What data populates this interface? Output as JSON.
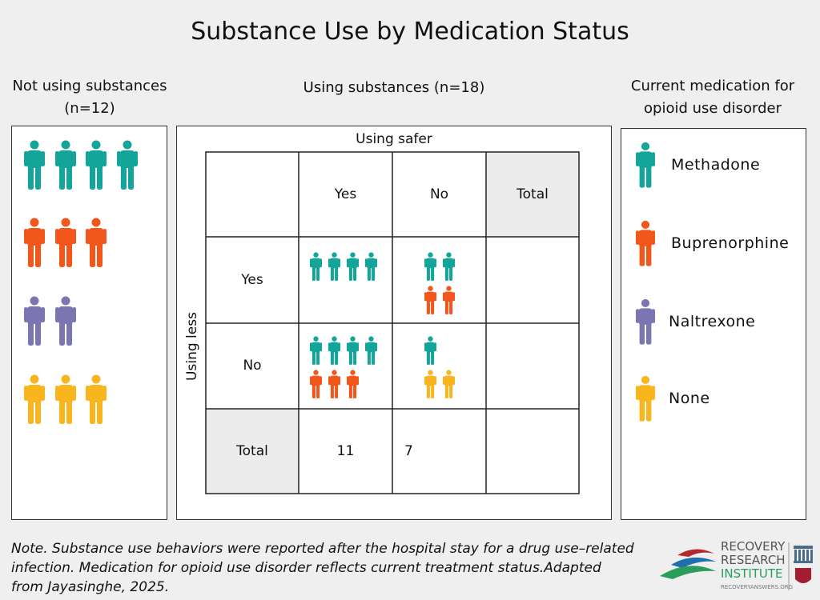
{
  "title": "Substance Use by Medication Status",
  "headers": {
    "not_using": "Not using substances",
    "not_using_n": "(n=12)",
    "using": "Using substances (n=18)",
    "legend_title_1": "Current medication for",
    "legend_title_2": "opioid use disorder"
  },
  "colors": {
    "methadone": "#13a49a",
    "buprenorphine": "#f2561b",
    "naltrexone": "#7b76b1",
    "none": "#f9b51d"
  },
  "legend": [
    {
      "label": "Methadone",
      "color": "methadone",
      "icon": "person-icon"
    },
    {
      "label": "Buprenorphine",
      "color": "buprenorphine",
      "icon": "person-icon"
    },
    {
      "label": "Naltrexone",
      "color": "naltrexone",
      "icon": "person-icon"
    },
    {
      "label": "None",
      "color": "none",
      "icon": "person-icon"
    }
  ],
  "not_using": {
    "methadone": 4,
    "buprenorphine": 3,
    "naltrexone": 2,
    "none": 3
  },
  "table": {
    "col_axis": "Using safer",
    "row_axis": "Using less",
    "col_yes": "Yes",
    "col_no": "No",
    "col_total": "Total",
    "row_yes": "Yes",
    "row_no": "No",
    "row_total": "Total",
    "total_col_yes": "11",
    "total_col_no": "7",
    "cells": {
      "yes_yes": {
        "methadone": 4,
        "buprenorphine": 0,
        "naltrexone": 0,
        "none": 0
      },
      "yes_no": {
        "methadone": 2,
        "buprenorphine": 2,
        "naltrexone": 0,
        "none": 0
      },
      "no_yes": {
        "methadone": 4,
        "buprenorphine": 3,
        "naltrexone": 0,
        "none": 0
      },
      "no_no": {
        "methadone": 1,
        "buprenorphine": 0,
        "naltrexone": 0,
        "none": 2
      }
    }
  },
  "note": "Note. Substance use behaviors were reported after the hospital stay for a drug use–related infection. Medication for opioid use disorder reflects current treatment status.Adapted from Jayasinghe, 2025.",
  "logo": {
    "line1": "RECOVERY",
    "line2": "RESEARCH",
    "line3": "INSTITUTE",
    "url": "RECOVERYANSWERS.ORG"
  }
}
